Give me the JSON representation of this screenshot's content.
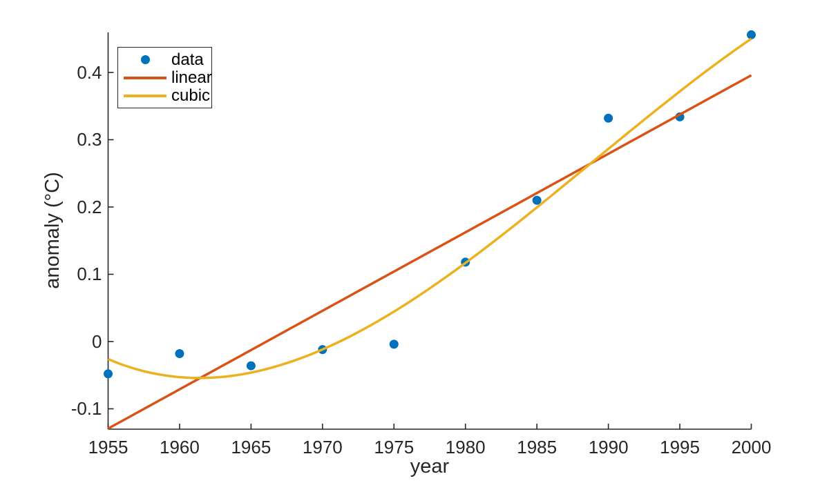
{
  "chart_data": {
    "type": "scatter",
    "title": "",
    "xlabel": "year",
    "ylabel": "anomaly (°C)",
    "xlim": [
      1955,
      2000
    ],
    "ylim": [
      -0.1303,
      0.4595
    ],
    "xticks": [
      "1955",
      "1960",
      "1965",
      "1970",
      "1975",
      "1980",
      "1985",
      "1990",
      "1995",
      "2000"
    ],
    "yticks": [
      "-0.1",
      "0",
      "0.1",
      "0.2",
      "0.3",
      "0.4"
    ],
    "ytick_values": [
      -0.1,
      0,
      0.1,
      0.2,
      0.3,
      0.4
    ],
    "xtick_values": [
      1955,
      1960,
      1965,
      1970,
      1975,
      1980,
      1985,
      1990,
      1995,
      2000
    ],
    "grid": false,
    "box": false,
    "tick_direction": "in",
    "legend_position": "top-left-inside",
    "axis_color": "#262626",
    "x": [
      1955,
      1960,
      1965,
      1970,
      1975,
      1980,
      1985,
      1990,
      1995,
      2000
    ],
    "series": [
      {
        "name": "data",
        "type": "scatter",
        "color": "#0072BD",
        "marker": "filled-circle",
        "values": [
          -0.048,
          -0.018,
          -0.036,
          -0.012,
          -0.004,
          0.118,
          0.21,
          0.332,
          0.334,
          0.456
        ]
      },
      {
        "name": "linear",
        "type": "line",
        "color": "#D95319",
        "fit": "linear-least-squares",
        "endpoints_x": [
          1955,
          2000
        ],
        "endpoints_y": [
          -0.1294,
          0.3958
        ]
      },
      {
        "name": "cubic",
        "type": "line",
        "color": "#EDB120",
        "fit": "cubic-least-squares",
        "coeffs_centered_at_1977_5": [
          0.0790119,
          0.0145128,
          0.00026273,
          -7.7593e-06
        ],
        "endpoints_y": [
          -0.0261,
          0.4502
        ]
      }
    ]
  }
}
